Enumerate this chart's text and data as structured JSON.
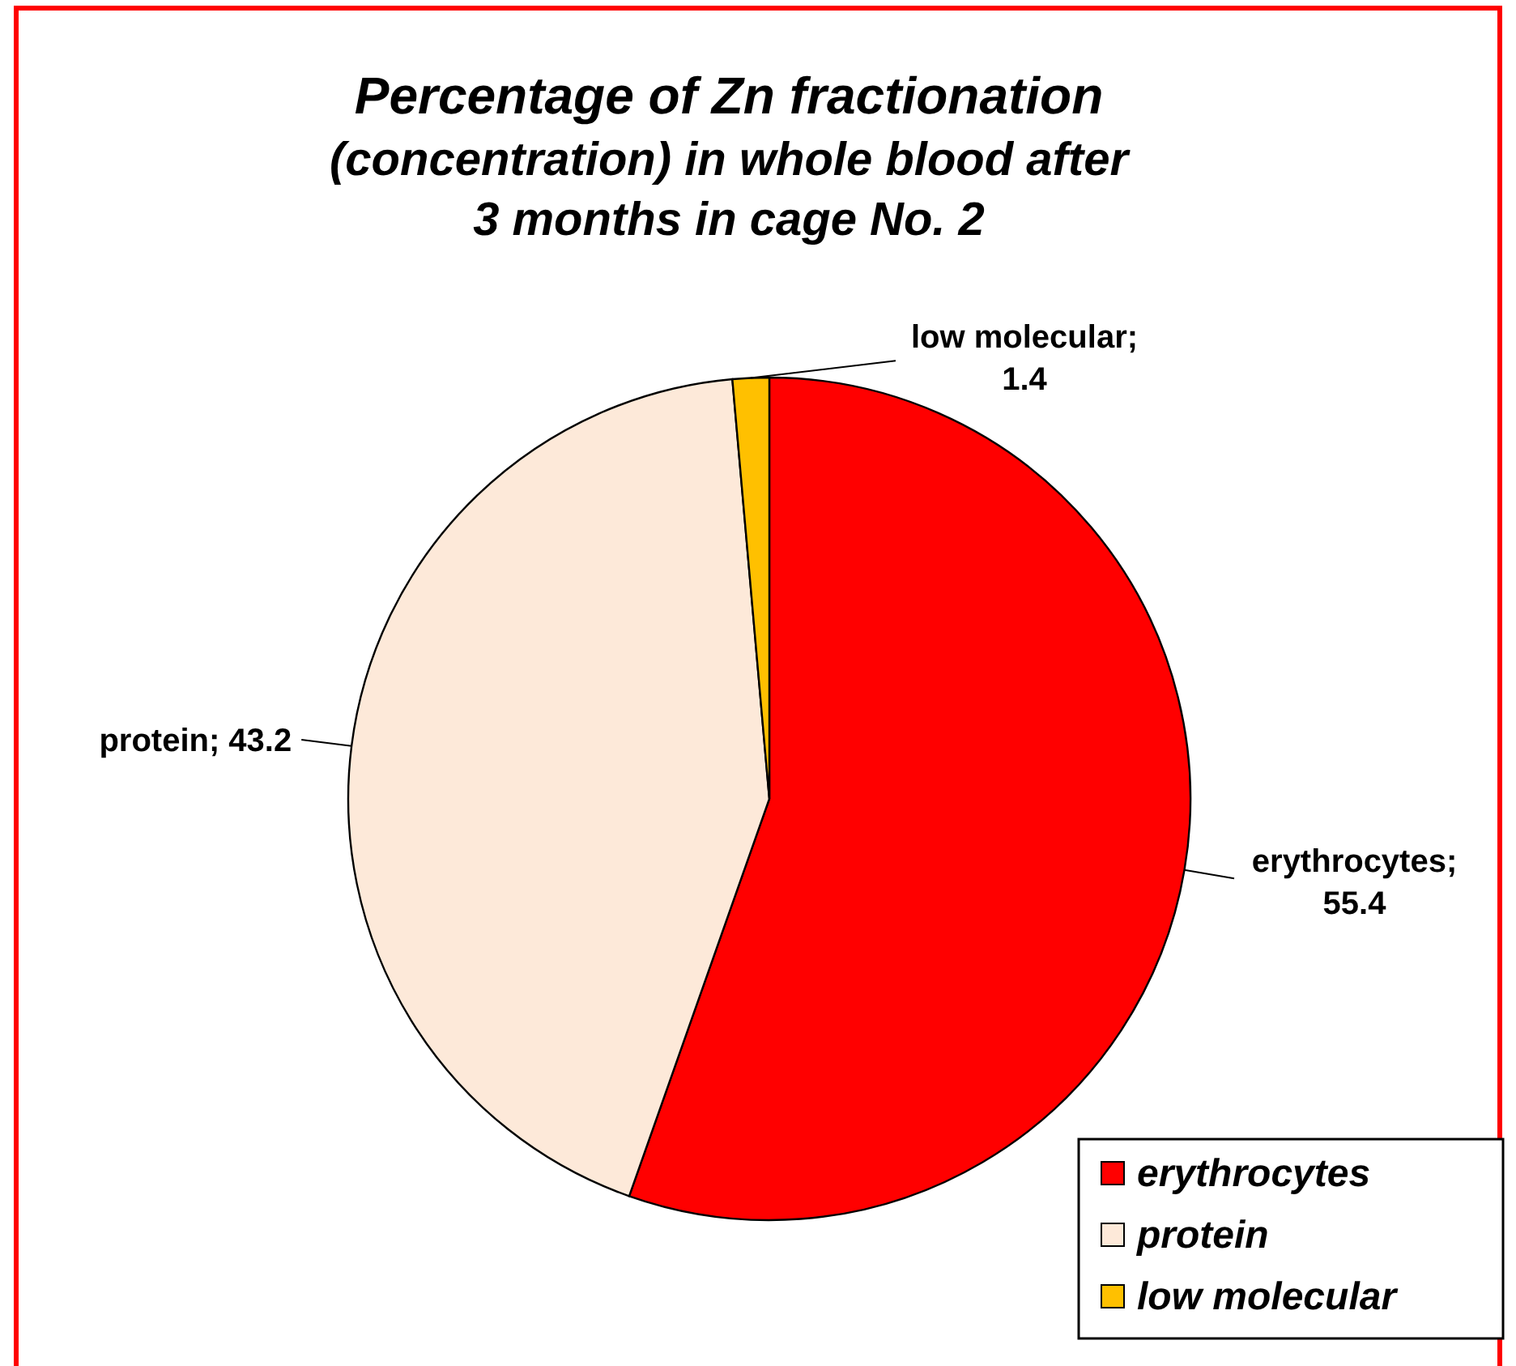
{
  "chart_data": {
    "type": "pie",
    "title": "Percentage of Zn fractionation\n(concentration) in whole blood after\n3 months in cage No. 2",
    "categories": [
      "erythrocytes",
      "protein",
      "low molecular"
    ],
    "values": [
      55.4,
      43.2,
      1.4
    ],
    "colors": [
      "#ff0000",
      "#fde9d9",
      "#ffc000"
    ],
    "value_labels": [
      "erythrocytes; 55.4",
      "protein; 43.2",
      "low molecular; 1.4"
    ],
    "legend": "bottom right"
  }
}
